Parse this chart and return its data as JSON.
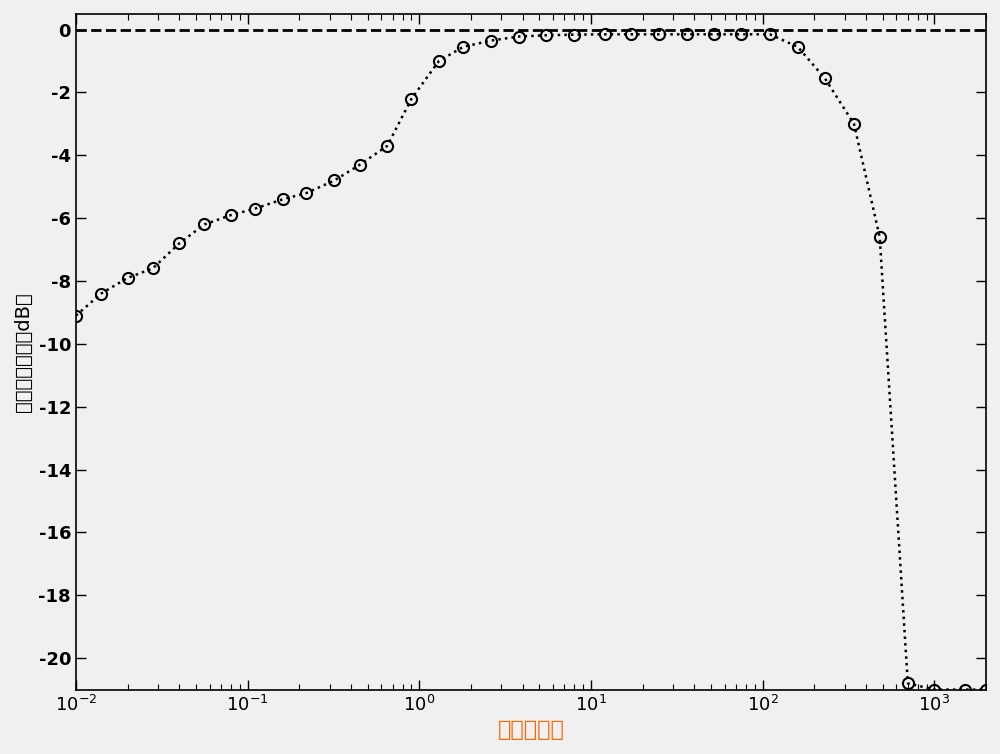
{
  "title": "",
  "xlabel": "正则化参数",
  "ylabel": "输出信干噪比（dB）",
  "xlabel_color": "#ff6600",
  "xlim": [
    0.01,
    2000
  ],
  "ylim": [
    -21,
    0.5
  ],
  "yticks": [
    0,
    -2,
    -4,
    -6,
    -8,
    -10,
    -12,
    -14,
    -16,
    -18,
    -20
  ],
  "dashed_line_y": 0,
  "line_color": "#000000",
  "marker_color": "#000000",
  "background_color": "#f0f0f0",
  "data_x": [
    0.01,
    0.014,
    0.02,
    0.028,
    0.04,
    0.056,
    0.08,
    0.11,
    0.16,
    0.22,
    0.32,
    0.45,
    0.65,
    0.9,
    1.3,
    1.8,
    2.6,
    3.8,
    5.5,
    8.0,
    12,
    17,
    25,
    36,
    52,
    75,
    110,
    160,
    230,
    340,
    480,
    700,
    1000,
    1500,
    2000
  ],
  "data_y": [
    -9.1,
    -8.4,
    -7.9,
    -7.6,
    -6.8,
    -6.2,
    -5.9,
    -5.7,
    -5.4,
    -5.2,
    -4.8,
    -4.3,
    -3.7,
    -2.2,
    -1.0,
    -0.55,
    -0.35,
    -0.22,
    -0.18,
    -0.16,
    -0.15,
    -0.15,
    -0.15,
    -0.15,
    -0.15,
    -0.15,
    -0.15,
    -0.55,
    -1.55,
    -3.0,
    -6.6,
    -20.8,
    -21.0,
    -21.0,
    -21.0
  ],
  "marker_size": 8,
  "line_style": ":",
  "line_width": 1.8
}
